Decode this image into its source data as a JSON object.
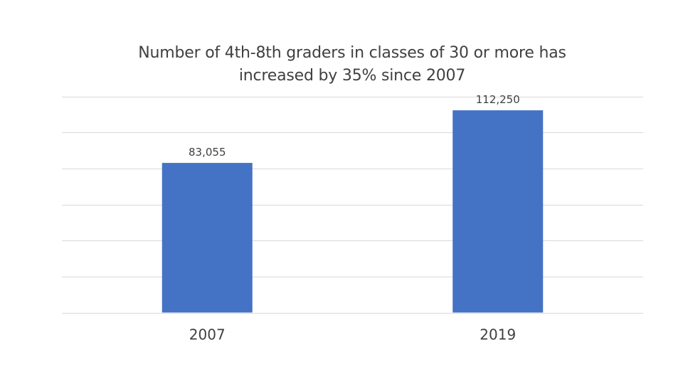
{
  "chart_data": {
    "type": "bar",
    "title_lines": [
      "Number of 4th-8th graders in classes of 30 or more has",
      "increased by 35% since 2007"
    ],
    "categories": [
      "2007",
      "2019"
    ],
    "values": [
      83055,
      112250
    ],
    "data_labels": [
      "83,055",
      "112,250"
    ],
    "ylim": [
      0,
      120000
    ],
    "y_gridline_step": 20000,
    "grid": true,
    "y_axis_labels_shown": false,
    "legend": "none",
    "colors": {
      "bar": "#4472C4",
      "gridline": "#D9D9D9",
      "text": "#404040"
    }
  }
}
